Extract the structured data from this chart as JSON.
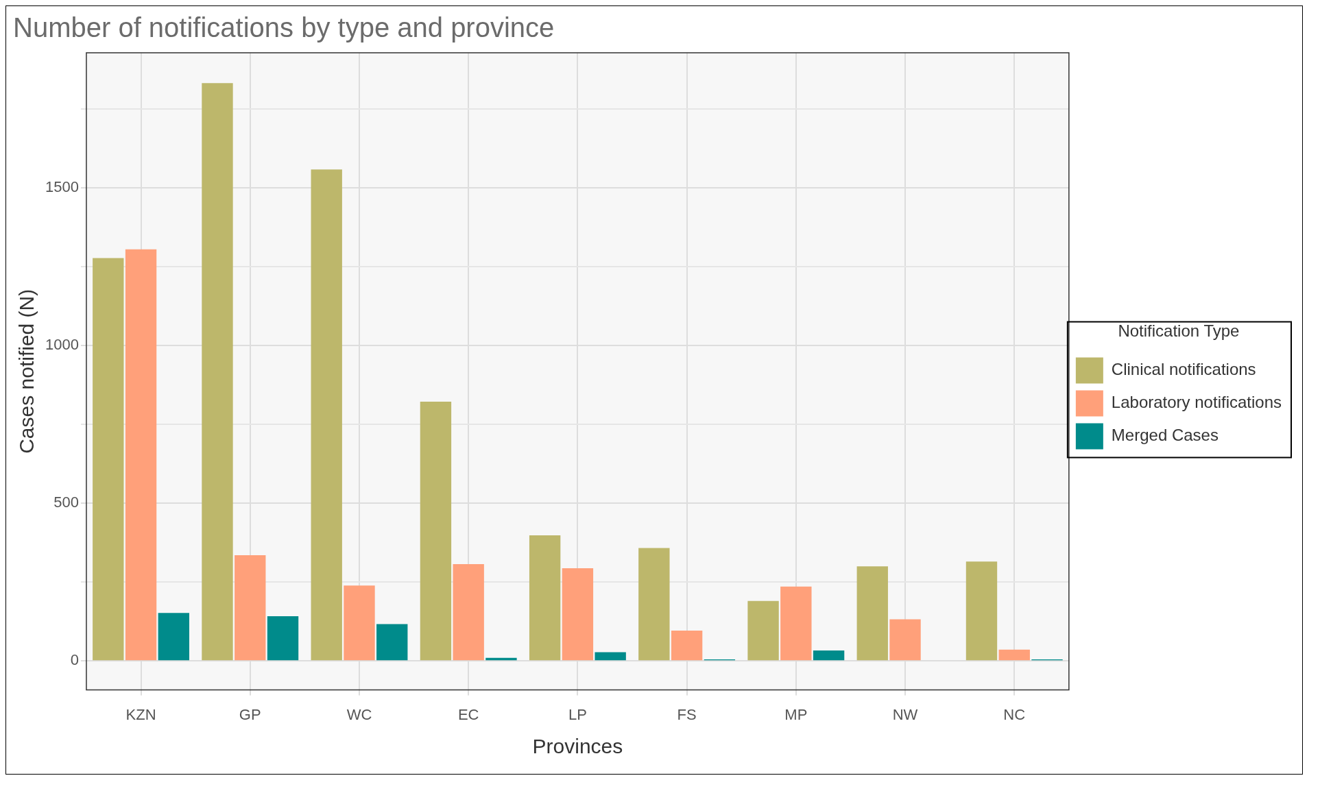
{
  "chart_data": {
    "type": "bar",
    "title": "Number of notifications by type and province",
    "xlabel": "Provinces",
    "ylabel": "Cases notified (N)",
    "legend_title": "Notification Type",
    "categories": [
      "KZN",
      "GP",
      "WC",
      "EC",
      "LP",
      "FS",
      "MP",
      "NW",
      "NC"
    ],
    "series": [
      {
        "name": "Clinical notifications",
        "color": "#bdb76b",
        "values": [
          1277,
          1832,
          1558,
          822,
          398,
          358,
          190,
          300,
          315
        ]
      },
      {
        "name": "Laboratory notifications",
        "color": "#ffa07a",
        "values": [
          1305,
          335,
          239,
          307,
          294,
          96,
          236,
          132,
          36
        ]
      },
      {
        "name": "Merged Cases",
        "color": "#008b8b",
        "values": [
          152,
          142,
          117,
          10,
          28,
          5,
          33,
          0,
          5
        ]
      }
    ],
    "ylim": [
      -92,
      1928
    ],
    "yticks": [
      0,
      {
        "value": 250,
        "label": null
      },
      500,
      {
        "value": 750,
        "label": null
      },
      1000,
      {
        "value": 1250,
        "label": null
      },
      1500,
      {
        "value": 1750,
        "label": null
      }
    ],
    "grid": true,
    "legend": "right"
  }
}
